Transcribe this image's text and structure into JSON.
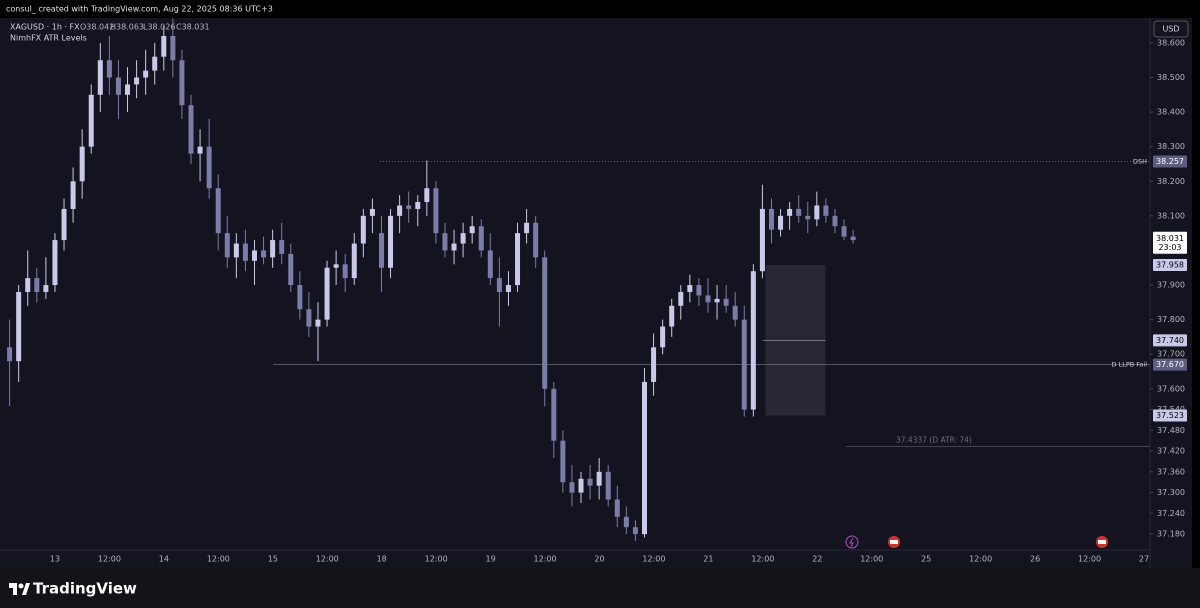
{
  "header": {
    "credit": "consul_ created with TradingView.com, Aug 22, 2025 08:36 UTC+3",
    "symbol": "XAGUSD · 1h · FX",
    "open": "O38.042",
    "high": "H38.063",
    "low": "L38.026",
    "close": "C38.031",
    "indicator": "NimhFX ATR Levels",
    "currency": "USD"
  },
  "footer": {
    "brand": "TradingView"
  },
  "chart_data": {
    "type": "candlestick",
    "ylim": [
      37.082,
      38.672
    ],
    "yticks": [
      {
        "value": 38.6,
        "label": "38.600"
      },
      {
        "value": 38.5,
        "label": "38.500"
      },
      {
        "value": 38.4,
        "label": "38.400"
      },
      {
        "value": 38.3,
        "label": "38.300"
      },
      {
        "value": 38.2,
        "label": "38.200"
      },
      {
        "value": 38.1,
        "label": "38.100"
      },
      {
        "value": 37.9,
        "label": "37.900"
      },
      {
        "value": 37.8,
        "label": "37.800"
      },
      {
        "value": 37.7,
        "label": "37.700"
      },
      {
        "value": 37.6,
        "label": "37.600"
      },
      {
        "value": 37.54,
        "label": "37.540"
      },
      {
        "value": 37.48,
        "label": "37.480"
      },
      {
        "value": 37.42,
        "label": "37.420"
      },
      {
        "value": 37.36,
        "label": "37.360"
      },
      {
        "value": 37.3,
        "label": "37.300"
      },
      {
        "value": 37.24,
        "label": "37.240"
      },
      {
        "value": 37.18,
        "label": "37.180"
      }
    ],
    "time_labels": [
      "13",
      "12:00",
      "14",
      "12:00",
      "15",
      "12:00",
      "18",
      "12:00",
      "19",
      "12:00",
      "20",
      "12:00",
      "21",
      "12:00",
      "22",
      "12:00",
      "25",
      "12:00",
      "26",
      "12:00",
      "27"
    ],
    "up_color": "#c9c9ea",
    "down_color": "#7c7ca8",
    "open": [
      37.72,
      37.68,
      37.88,
      37.92,
      37.88,
      37.9,
      38.03,
      38.12,
      38.2,
      38.3,
      38.45,
      38.55,
      38.5,
      38.45,
      38.48,
      38.5,
      38.52,
      38.56,
      38.62,
      38.55,
      38.42,
      38.28,
      38.3,
      38.18,
      38.05,
      37.98,
      38.02,
      37.97,
      38.0,
      37.98,
      38.03,
      37.99,
      37.9,
      37.83,
      37.78,
      37.8,
      37.95,
      37.96,
      37.92,
      38.02,
      38.1,
      38.05,
      37.95,
      38.1,
      38.13,
      38.12,
      38.14,
      38.18,
      38.05,
      38.0,
      38.02,
      38.05,
      38.07,
      38.0,
      37.92,
      37.88,
      37.9,
      38.05,
      38.08,
      37.98,
      37.6,
      37.45,
      37.33,
      37.3,
      37.34,
      37.32,
      37.36,
      37.28,
      37.23,
      37.2,
      37.18,
      37.62,
      37.72,
      37.78,
      37.84,
      37.88,
      37.9,
      37.87,
      37.85,
      37.86,
      37.84,
      37.8,
      37.54,
      37.94,
      38.12,
      38.06,
      38.1,
      38.12,
      38.1,
      38.09,
      38.13,
      38.1,
      38.07,
      38.04
    ],
    "high": [
      37.8,
      37.9,
      38.0,
      37.95,
      37.98,
      38.05,
      38.15,
      38.24,
      38.35,
      38.48,
      38.6,
      38.62,
      38.55,
      38.53,
      38.55,
      38.58,
      38.6,
      38.65,
      38.67,
      38.58,
      38.45,
      38.35,
      38.38,
      38.22,
      38.1,
      38.05,
      38.06,
      38.03,
      38.04,
      38.06,
      38.08,
      38.02,
      37.94,
      37.88,
      37.85,
      37.97,
      38.0,
      37.99,
      38.05,
      38.12,
      38.15,
      38.1,
      38.12,
      38.16,
      38.17,
      38.16,
      38.26,
      38.2,
      38.08,
      38.06,
      38.08,
      38.1,
      38.09,
      38.05,
      37.98,
      37.94,
      38.08,
      38.12,
      38.1,
      38.0,
      37.62,
      37.48,
      37.38,
      37.36,
      37.38,
      37.4,
      37.38,
      37.32,
      37.26,
      37.22,
      37.66,
      37.76,
      37.8,
      37.86,
      37.9,
      37.93,
      37.92,
      37.92,
      37.9,
      37.9,
      37.88,
      37.84,
      37.96,
      38.19,
      38.15,
      38.12,
      38.14,
      38.16,
      38.14,
      38.17,
      38.15,
      38.12,
      38.09,
      38.06
    ],
    "low": [
      37.55,
      37.62,
      37.84,
      37.85,
      37.86,
      37.88,
      38.0,
      38.08,
      38.15,
      38.28,
      38.4,
      38.45,
      38.38,
      38.4,
      38.44,
      38.45,
      38.48,
      38.52,
      38.5,
      38.38,
      38.25,
      38.2,
      38.15,
      38.0,
      37.95,
      37.92,
      37.94,
      37.9,
      37.96,
      37.95,
      37.96,
      37.88,
      37.8,
      37.75,
      37.68,
      37.78,
      37.9,
      37.88,
      37.9,
      37.98,
      38.05,
      37.88,
      37.92,
      38.05,
      38.08,
      38.07,
      38.1,
      38.02,
      37.98,
      37.96,
      37.98,
      38.02,
      37.98,
      37.9,
      37.78,
      37.84,
      37.88,
      38.02,
      37.95,
      37.55,
      37.4,
      37.3,
      37.26,
      37.27,
      37.28,
      37.28,
      37.26,
      37.2,
      37.18,
      37.16,
      37.17,
      37.58,
      37.7,
      37.75,
      37.8,
      37.85,
      37.84,
      37.82,
      37.8,
      37.82,
      37.78,
      37.52,
      37.52,
      37.92,
      38.02,
      38.04,
      38.06,
      38.08,
      38.05,
      38.07,
      38.08,
      38.05,
      38.03,
      38.02
    ],
    "close": [
      37.68,
      37.88,
      37.92,
      37.88,
      37.9,
      38.03,
      38.12,
      38.2,
      38.3,
      38.45,
      38.55,
      38.5,
      38.45,
      38.48,
      38.5,
      38.52,
      38.56,
      38.62,
      38.55,
      38.42,
      38.28,
      38.3,
      38.18,
      38.05,
      37.98,
      38.02,
      37.97,
      38.0,
      37.98,
      38.03,
      37.99,
      37.9,
      37.83,
      37.78,
      37.8,
      37.95,
      37.96,
      37.92,
      38.02,
      38.1,
      38.12,
      37.95,
      38.1,
      38.13,
      38.12,
      38.14,
      38.18,
      38.05,
      38.0,
      38.02,
      38.05,
      38.07,
      38.0,
      37.92,
      37.88,
      37.9,
      38.05,
      38.08,
      37.98,
      37.6,
      37.45,
      37.33,
      37.3,
      37.34,
      37.32,
      37.36,
      37.28,
      37.23,
      37.2,
      37.18,
      37.62,
      37.72,
      37.78,
      37.84,
      37.88,
      37.9,
      37.87,
      37.85,
      37.86,
      37.84,
      37.8,
      37.54,
      37.94,
      38.12,
      38.06,
      38.1,
      38.12,
      38.1,
      38.09,
      38.13,
      38.1,
      38.07,
      38.04,
      38.03
    ],
    "levels": [
      {
        "label": "DSH",
        "value": 38.257,
        "value_label": "38.257"
      },
      {
        "label": "D LLPB Fail",
        "value": 37.67,
        "value_label": "37.670"
      }
    ],
    "box": {
      "top": 37.958,
      "top_label": "37.958",
      "mid": 37.74,
      "mid_label": "37.740",
      "bottom": 37.523,
      "bottom_label": "37.523"
    },
    "atr": {
      "value": 37.4337,
      "label": "37.4337 (D ATR: 74)"
    },
    "last_price": {
      "value": 38.031,
      "label": "38.031",
      "countdown": "23:03"
    }
  }
}
